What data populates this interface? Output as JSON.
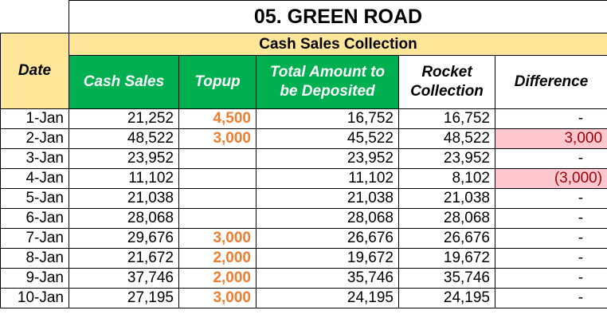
{
  "title": "05. GREEN ROAD",
  "group_header": "Cash Sales Collection",
  "columns": {
    "date": "Date",
    "cash_sales": "Cash Sales",
    "topup": "Topup",
    "total_amount": "Total Amount to be Deposited",
    "rocket": "Rocket Collection",
    "difference": "Difference"
  },
  "colors": {
    "header_green": "#00b050",
    "group_yellow": "#ffe699",
    "date_peach": "#fce4d6",
    "topup_orange": "#ed7d31",
    "diff_highlight_bg": "#ffc7ce",
    "diff_highlight_text": "#9c0006"
  },
  "rows": [
    {
      "date": "1-Jan",
      "cash_sales": "21,252",
      "topup": "4,500",
      "total": "16,752",
      "rocket": "16,752",
      "difference": "-",
      "highlight": false
    },
    {
      "date": "2-Jan",
      "cash_sales": "48,522",
      "topup": "3,000",
      "total": "45,522",
      "rocket": "48,522",
      "difference": "3,000",
      "highlight": true
    },
    {
      "date": "3-Jan",
      "cash_sales": "23,952",
      "topup": "",
      "total": "23,952",
      "rocket": "23,952",
      "difference": "-",
      "highlight": false
    },
    {
      "date": "4-Jan",
      "cash_sales": "11,102",
      "topup": "",
      "total": "11,102",
      "rocket": "8,102",
      "difference": "(3,000)",
      "highlight": true
    },
    {
      "date": "5-Jan",
      "cash_sales": "21,038",
      "topup": "",
      "total": "21,038",
      "rocket": "21,038",
      "difference": "-",
      "highlight": false
    },
    {
      "date": "6-Jan",
      "cash_sales": "28,068",
      "topup": "",
      "total": "28,068",
      "rocket": "28,068",
      "difference": "-",
      "highlight": false
    },
    {
      "date": "7-Jan",
      "cash_sales": "29,676",
      "topup": "3,000",
      "total": "26,676",
      "rocket": "26,676",
      "difference": "-",
      "highlight": false
    },
    {
      "date": "8-Jan",
      "cash_sales": "21,672",
      "topup": "2,000",
      "total": "19,672",
      "rocket": "19,672",
      "difference": "-",
      "highlight": false
    },
    {
      "date": "9-Jan",
      "cash_sales": "37,746",
      "topup": "2,000",
      "total": "35,746",
      "rocket": "35,746",
      "difference": "-",
      "highlight": false
    },
    {
      "date": "10-Jan",
      "cash_sales": "27,195",
      "topup": "3,000",
      "total": "24,195",
      "rocket": "24,195",
      "difference": "-",
      "highlight": false
    }
  ]
}
